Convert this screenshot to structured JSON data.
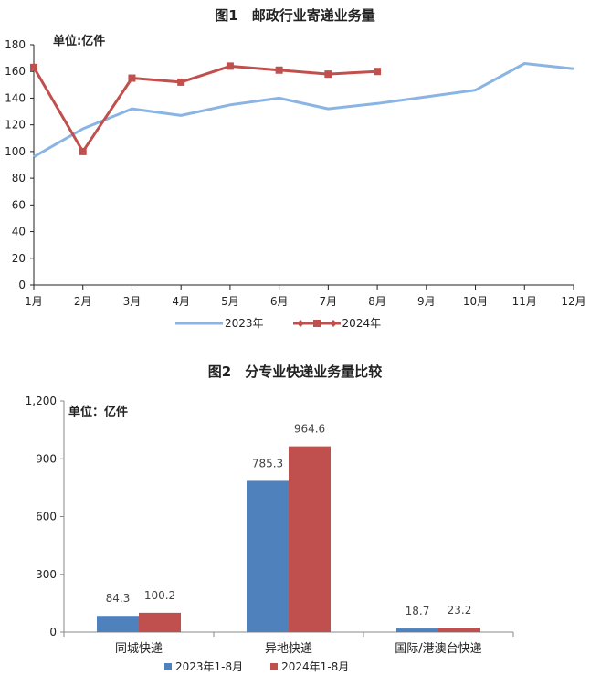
{
  "chart_data": [
    {
      "type": "line",
      "title": "图1　邮政行业寄递业务量",
      "unit_label": "单位:亿件",
      "categories": [
        "1月",
        "2月",
        "3月",
        "4月",
        "5月",
        "6月",
        "7月",
        "8月",
        "9月",
        "10月",
        "11月",
        "12月"
      ],
      "ylim": [
        0,
        180
      ],
      "yticks": [
        0,
        20,
        40,
        60,
        80,
        100,
        120,
        140,
        160,
        180
      ],
      "grid": false,
      "legend_position": "bottom",
      "series": [
        {
          "name": "2023年",
          "color": "#8AB4E3",
          "marker": "none",
          "values": [
            96,
            117,
            132,
            127,
            135,
            140,
            132,
            136,
            141,
            146,
            166,
            162
          ]
        },
        {
          "name": "2024年",
          "color": "#C0504D",
          "marker": "square",
          "values": [
            163,
            100,
            155,
            152,
            164,
            161,
            158,
            160,
            null,
            null,
            null,
            null
          ]
        }
      ]
    },
    {
      "type": "bar",
      "title": "图2　分专业快递业务量比较",
      "unit_label": "单位：亿件",
      "categories": [
        "同城快递",
        "异地快递",
        "国际/港澳台快递"
      ],
      "ylim": [
        0,
        1200
      ],
      "yticks": [
        0,
        300,
        600,
        900,
        1200
      ],
      "ytick_labels": [
        "0",
        "300",
        "600",
        "900",
        "1,200"
      ],
      "grid": false,
      "legend_position": "bottom",
      "series": [
        {
          "name": "2023年1-8月",
          "color": "#4F81BD",
          "values": [
            84.3,
            785.3,
            18.7
          ],
          "labels": [
            "84.3",
            "785.3",
            "18.7"
          ]
        },
        {
          "name": "2024年1-8月",
          "color": "#C0504D",
          "values": [
            100.2,
            964.6,
            23.2
          ],
          "labels": [
            "100.2",
            "964.6",
            "23.2"
          ]
        }
      ]
    }
  ]
}
